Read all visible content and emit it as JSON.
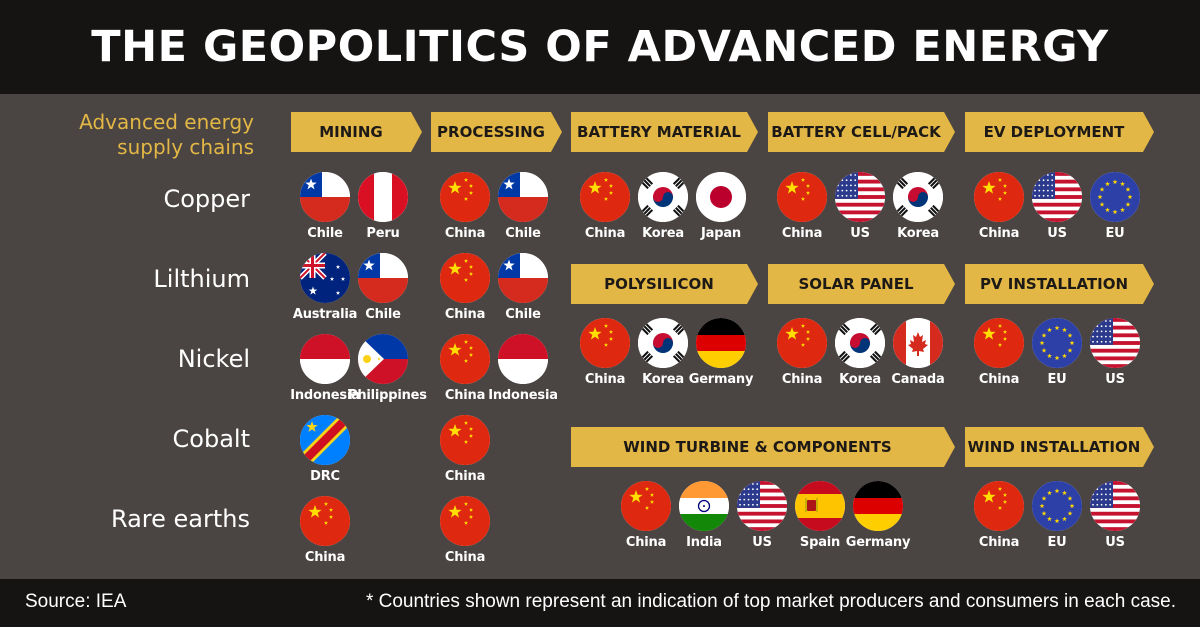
{
  "title": "THE GEOPOLITICS OF ADVANCED ENERGY",
  "legend_label": "Advanced energy supply chains",
  "minerals": [
    "Copper",
    "Lilthium",
    "Nickel",
    "Cobalt",
    "Rare earths"
  ],
  "stages": {
    "mining": "MINING",
    "processing": "PROCESSING",
    "battery_material": "BATTERY MATERIAL",
    "battery_cell": "BATTERY CELL/PACK",
    "ev_deployment": "EV DEPLOYMENT",
    "polysilicon": "POLYSILICON",
    "solar_panel": "SOLAR PANEL",
    "pv_installation": "PV INSTALLATION",
    "wind_turbine": "WIND TURBINE & COMPONENTS",
    "wind_installation": "WIND INSTALLATION"
  },
  "mining": {
    "copper": [
      "Chile",
      "Peru"
    ],
    "lithium": [
      "Australia",
      "Chile"
    ],
    "nickel": [
      "Indonesia",
      "Philippines"
    ],
    "cobalt": [
      "DRC"
    ],
    "rare_earths": [
      "China"
    ]
  },
  "processing": {
    "copper": [
      "China",
      "Chile"
    ],
    "lithium": [
      "China",
      "Chile"
    ],
    "nickel": [
      "China",
      "Indonesia"
    ],
    "cobalt": [
      "China"
    ],
    "rare_earths": [
      "China"
    ]
  },
  "battery_material": [
    "China",
    "Korea",
    "Japan"
  ],
  "battery_cell": [
    "China",
    "US",
    "Korea"
  ],
  "ev_deployment": [
    "China",
    "US",
    "EU"
  ],
  "polysilicon": [
    "China",
    "Korea",
    "Germany"
  ],
  "solar_panel": [
    "China",
    "Korea",
    "Canada"
  ],
  "pv_installation": [
    "China",
    "EU",
    "US"
  ],
  "wind_turbine": [
    "China",
    "India",
    "US",
    "Spain",
    "Germany"
  ],
  "wind_installation": [
    "China",
    "EU",
    "US"
  ],
  "source": "Source: IEA",
  "note": "* Countries shown represent an indication of top market producers and consumers in each case.",
  "colors": {
    "accent": "#e3b745",
    "background": "#4a4442",
    "band": "#161313"
  }
}
